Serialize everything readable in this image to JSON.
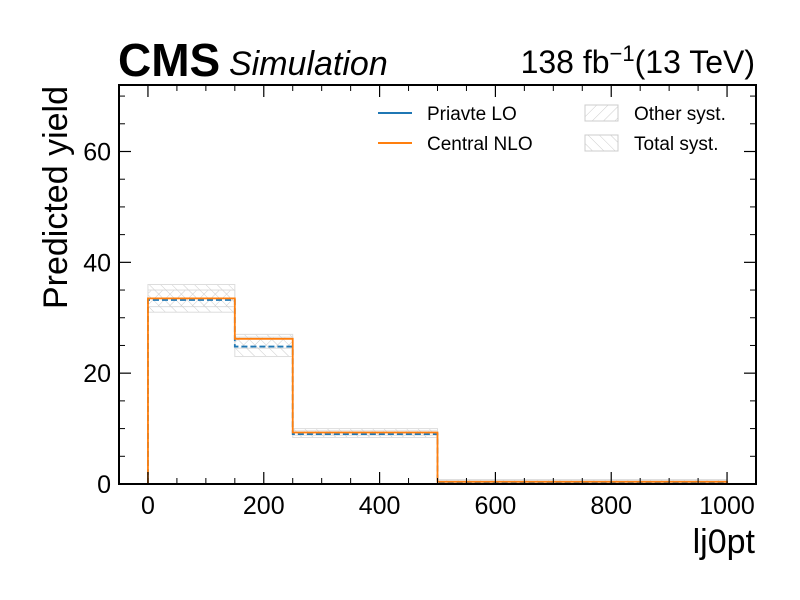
{
  "header": {
    "experiment": "CMS",
    "qualifier": "Simulation",
    "lumi_value": "138 fb",
    "lumi_exponent": "−1",
    "lumi_energy": "(13 TeV)"
  },
  "chart_data": {
    "type": "histogram",
    "xlabel": "lj0pt",
    "ylabel": "Predicted yield",
    "xlim": [
      -50,
      1050
    ],
    "ylim": [
      0,
      72
    ],
    "x_ticks": [
      0,
      200,
      400,
      600,
      800,
      1000
    ],
    "y_ticks": [
      0,
      20,
      40,
      60
    ],
    "bin_edges": [
      0,
      150,
      250,
      500,
      1000
    ],
    "series": [
      {
        "name": "Priavte LO",
        "color": "#1f77b4",
        "style": "dashed",
        "values": [
          33.2,
          24.8,
          9.0,
          0.3
        ]
      },
      {
        "name": "Central NLO",
        "color": "#ff7f0e",
        "style": "solid",
        "values": [
          33.5,
          26.2,
          9.3,
          0.4
        ]
      }
    ],
    "bands": [
      {
        "name": "Other syst.",
        "hatch": "////",
        "low": [
          32.0,
          24.5,
          8.8,
          0.2
        ],
        "high": [
          35.0,
          26.5,
          9.6,
          0.6
        ]
      },
      {
        "name": "Total syst.",
        "hatch": "\\\\\\\\",
        "low": [
          31.0,
          23.0,
          8.4,
          0.0
        ],
        "high": [
          36.0,
          27.0,
          10.0,
          0.8
        ]
      }
    ],
    "legend": {
      "placement": "top-right",
      "columns": 2
    }
  }
}
